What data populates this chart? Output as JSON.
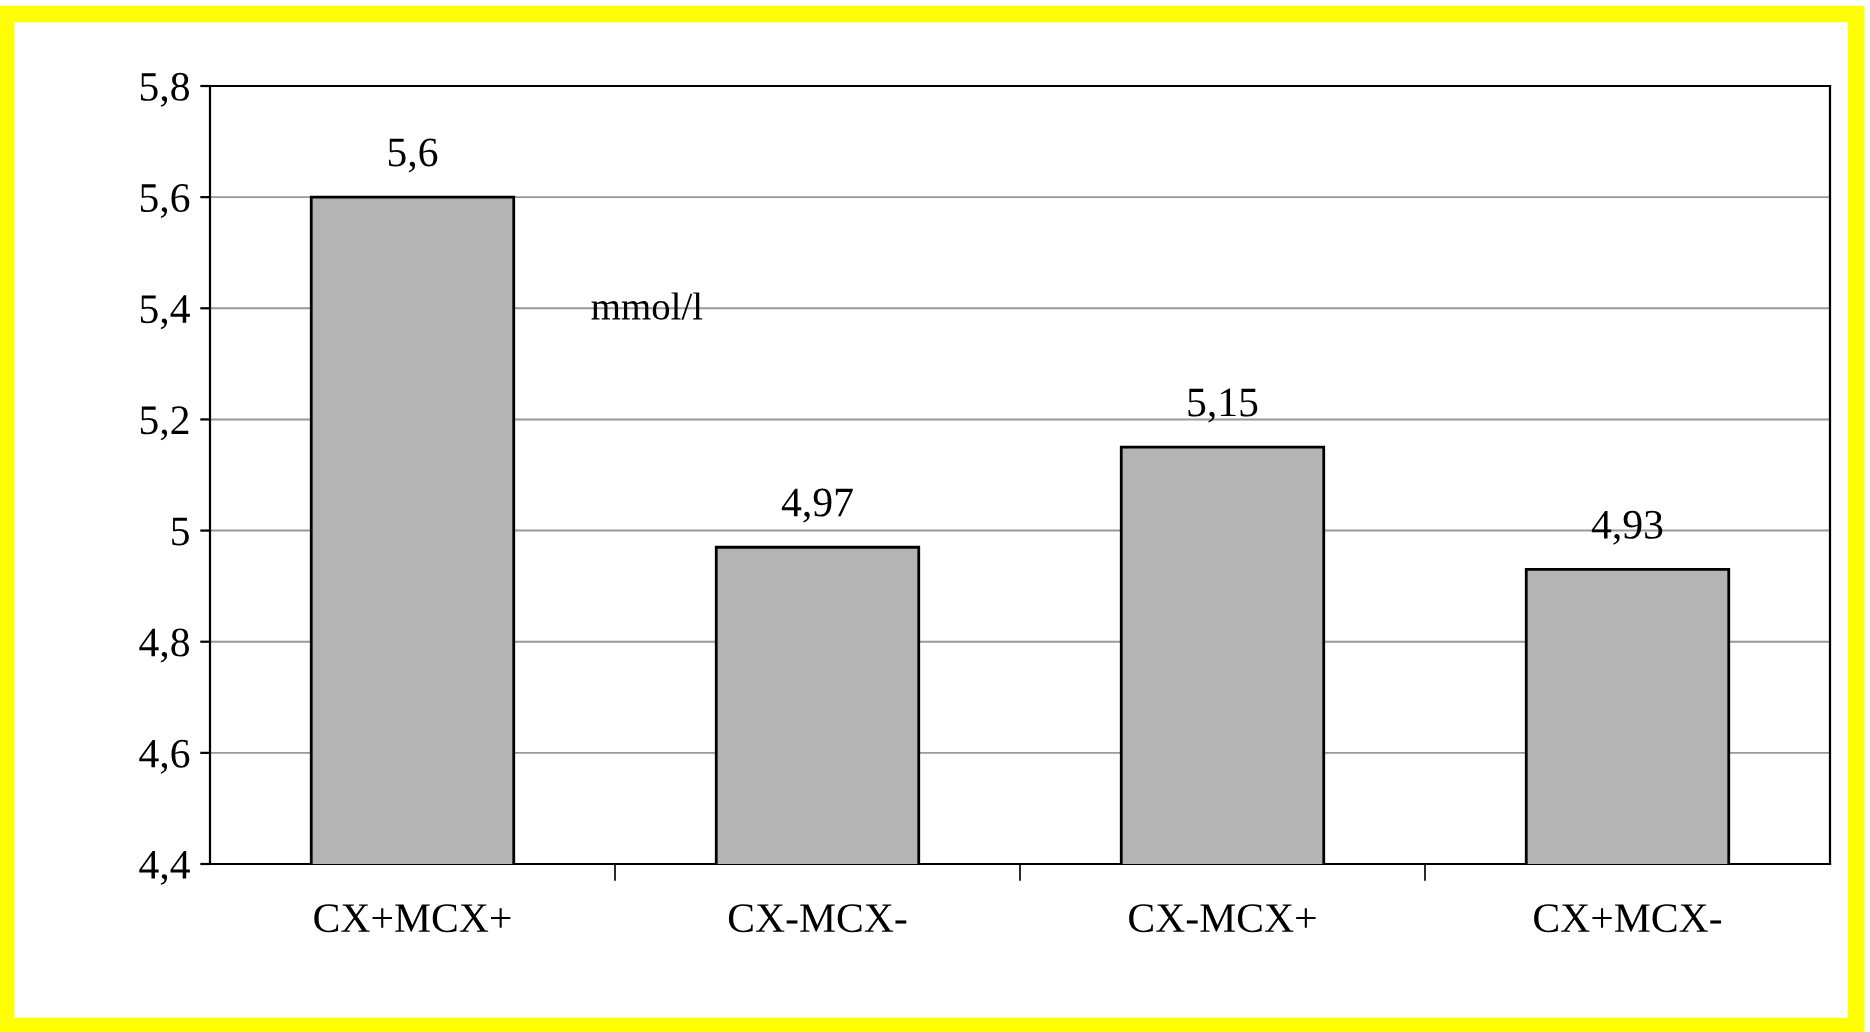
{
  "chart_data": {
    "type": "bar",
    "categories": [
      "CX+MCX+",
      "CX-MCX-",
      "CX-MCX+",
      "CX+MCX-"
    ],
    "values": [
      5.6,
      4.97,
      5.15,
      4.93
    ],
    "color": "#b4b4b4",
    "ylim": [
      4.4,
      5.8
    ],
    "yticks": [
      {
        "value": 4.4,
        "label": "4,4"
      },
      {
        "value": 4.6,
        "label": "4,6"
      },
      {
        "value": 4.8,
        "label": "4,8"
      },
      {
        "value": 5,
        "label": "5"
      },
      {
        "value": 5.2,
        "label": "5,2"
      },
      {
        "value": 5.4,
        "label": "5,4"
      },
      {
        "value": 5.6,
        "label": "5,6"
      },
      {
        "value": 5.8,
        "label": "5,8"
      }
    ],
    "value_labels": [
      "5,6",
      "4,97",
      "5,15",
      "4,93"
    ],
    "annotations": [
      "mmol/l"
    ],
    "grid": "y"
  }
}
